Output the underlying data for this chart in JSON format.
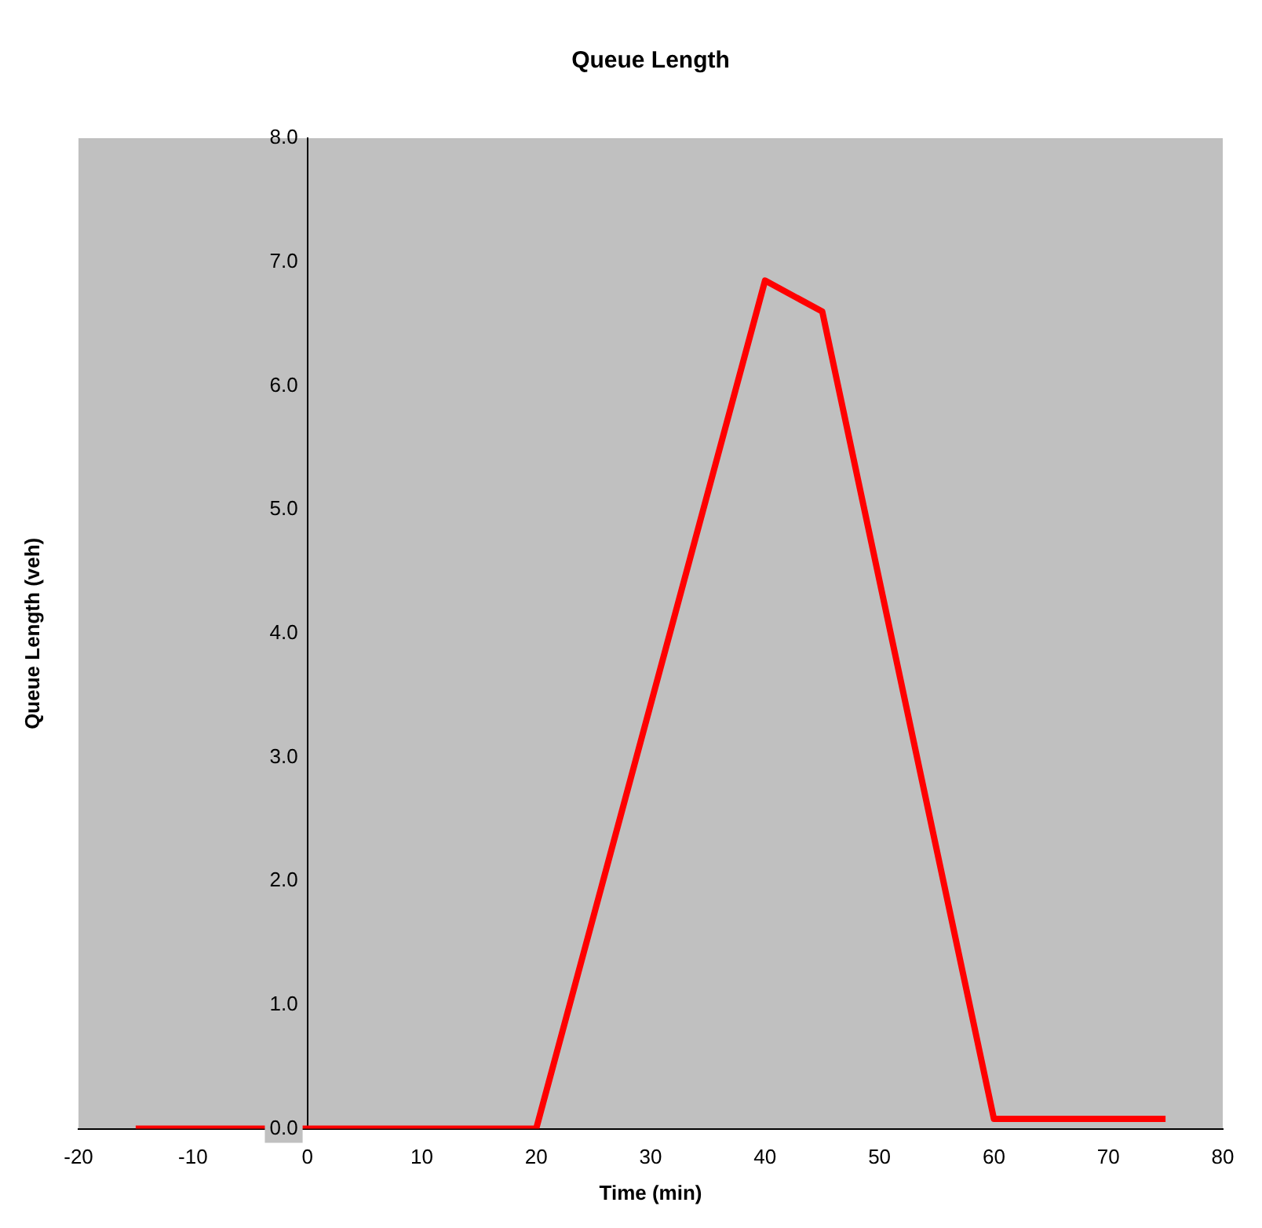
{
  "chart_data": {
    "type": "line",
    "title": "Queue Length",
    "xlabel": "Time (min)",
    "ylabel": "Queue Length (veh)",
    "series": [
      {
        "x": [
          -15,
          20,
          40,
          45,
          60,
          75
        ],
        "values": [
          0,
          0,
          6.85,
          6.6,
          0.08,
          0.08
        ],
        "color": "#ff0000"
      }
    ],
    "xlim": [
      -20,
      80
    ],
    "xticks": [
      -20,
      -10,
      0,
      10,
      20,
      30,
      40,
      50,
      60,
      70,
      80
    ],
    "ylim": [
      0,
      8
    ],
    "yticks": [
      {
        "value": 0,
        "label": "0.0"
      },
      {
        "value": 1,
        "label": "1.0"
      },
      {
        "value": 2,
        "label": "2.0"
      },
      {
        "value": 3,
        "label": "3.0"
      },
      {
        "value": 4,
        "label": "4.0"
      },
      {
        "value": 5,
        "label": "5.0"
      },
      {
        "value": 6,
        "label": "6.0"
      },
      {
        "value": 7,
        "label": "7.0"
      },
      {
        "value": 8,
        "label": "8.0"
      }
    ],
    "grid": false,
    "legend": false,
    "marker": "none",
    "line_style": "solid"
  }
}
